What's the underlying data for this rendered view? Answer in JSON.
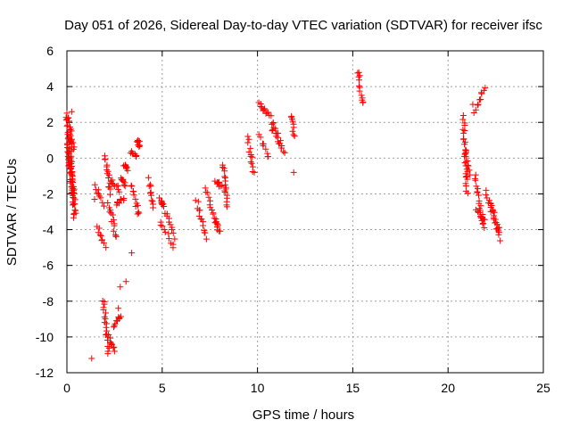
{
  "chart_data": {
    "type": "scatter",
    "title": "Day 051 of 2026, Sidereal Day-to-day VTEC variation (SDTVAR) for receiver ifsc",
    "xlabel": "GPS time / hours",
    "ylabel": "SDTVAR / TECUs",
    "xlim": [
      0,
      25
    ],
    "ylim": [
      -12,
      6
    ],
    "xticks": [
      0,
      5,
      10,
      15,
      20,
      25
    ],
    "yticks": [
      -12,
      -10,
      -8,
      -6,
      -4,
      -2,
      0,
      2,
      4,
      6
    ],
    "xtick_labels": [
      "0",
      "5",
      "10",
      "15",
      "20",
      "25"
    ],
    "ytick_labels": [
      "-12",
      "-10",
      "-8",
      "-6",
      "-4",
      "-2",
      "0",
      "2",
      "4",
      "6"
    ],
    "grid": true,
    "marker": "+",
    "color": "#ff0000",
    "segments": [
      {
        "x0": 0.0,
        "x1": 0.12,
        "y0": 2.5,
        "y1": -0.5
      },
      {
        "x0": 0.1,
        "x1": 0.35,
        "y0": 2.3,
        "y1": 0.5
      },
      {
        "x0": 0.15,
        "x1": 0.4,
        "y0": 1.5,
        "y1": -3.3
      },
      {
        "x0": 0.05,
        "x1": 0.3,
        "y0": 0.8,
        "y1": -2.2
      },
      {
        "x0": 0.2,
        "x1": 0.45,
        "y0": -0.5,
        "y1": -3.0
      },
      {
        "x0": 1.5,
        "x1": 1.9,
        "y0": -1.5,
        "y1": -2.6
      },
      {
        "x0": 1.6,
        "x1": 2.0,
        "y0": -3.8,
        "y1": -4.9
      },
      {
        "x0": 2.0,
        "x1": 2.3,
        "y0": 0.2,
        "y1": -2.0
      },
      {
        "x0": 1.9,
        "x1": 2.2,
        "y0": -7.9,
        "y1": -10.9
      },
      {
        "x0": 2.2,
        "x1": 2.5,
        "y0": -10.0,
        "y1": -10.7
      },
      {
        "x0": 2.2,
        "x1": 2.6,
        "y0": -2.5,
        "y1": -4.5
      },
      {
        "x0": 2.3,
        "x1": 2.8,
        "y0": -1.2,
        "y1": -1.8
      },
      {
        "x0": 2.5,
        "x1": 2.8,
        "y0": -9.4,
        "y1": -8.8
      },
      {
        "x0": 2.6,
        "x1": 3.0,
        "y0": -2.6,
        "y1": -2.2
      },
      {
        "x0": 2.9,
        "x1": 3.0,
        "y0": -1.1,
        "y1": -1.5
      },
      {
        "x0": 3.0,
        "x1": 3.2,
        "y0": -0.4,
        "y1": -0.6
      },
      {
        "x0": 3.4,
        "x1": 3.8,
        "y0": -1.5,
        "y1": -3.2
      },
      {
        "x0": 3.4,
        "x1": 3.6,
        "y0": 0.4,
        "y1": 0.1
      },
      {
        "x0": 3.7,
        "x1": 3.8,
        "y0": 1.0,
        "y1": 0.7
      },
      {
        "x0": 4.3,
        "x1": 4.5,
        "y0": -1.2,
        "y1": -2.8
      },
      {
        "x0": 4.9,
        "x1": 5.1,
        "y0": -2.3,
        "y1": -2.6
      },
      {
        "x0": 4.9,
        "x1": 5.6,
        "y0": -3.5,
        "y1": -5.0
      },
      {
        "x0": 5.2,
        "x1": 5.6,
        "y0": -3.0,
        "y1": -4.4
      },
      {
        "x0": 6.8,
        "x1": 7.3,
        "y0": -2.4,
        "y1": -4.4
      },
      {
        "x0": 7.3,
        "x1": 7.8,
        "y0": -1.7,
        "y1": -3.5
      },
      {
        "x0": 7.8,
        "x1": 8.1,
        "y0": -1.2,
        "y1": -1.6
      },
      {
        "x0": 7.8,
        "x1": 8.0,
        "y0": -3.6,
        "y1": -4.1
      },
      {
        "x0": 8.2,
        "x1": 8.4,
        "y0": -0.3,
        "y1": -2.7
      },
      {
        "x0": 9.5,
        "x1": 9.8,
        "y0": 1.1,
        "y1": -0.8
      },
      {
        "x0": 10.1,
        "x1": 10.5,
        "y0": 3.1,
        "y1": 2.5
      },
      {
        "x0": 10.1,
        "x1": 10.6,
        "y0": 1.2,
        "y1": 0.0
      },
      {
        "x0": 10.6,
        "x1": 11.4,
        "y0": 2.6,
        "y1": 0.3
      },
      {
        "x0": 10.7,
        "x1": 11.3,
        "y0": 1.8,
        "y1": 0.5
      },
      {
        "x0": 11.8,
        "x1": 11.9,
        "y0": 2.4,
        "y1": 1.2
      },
      {
        "x0": 15.3,
        "x1": 15.5,
        "y0": 4.9,
        "y1": 3.0
      },
      {
        "x0": 20.8,
        "x1": 21.0,
        "y0": 2.3,
        "y1": -1.9
      },
      {
        "x0": 20.9,
        "x1": 21.1,
        "y0": 0.5,
        "y1": -1.0
      },
      {
        "x0": 21.4,
        "x1": 21.9,
        "y0": 2.6,
        "y1": 4.0
      },
      {
        "x0": 21.4,
        "x1": 21.9,
        "y0": -1.0,
        "y1": -3.9
      },
      {
        "x0": 21.5,
        "x1": 21.9,
        "y0": -3.0,
        "y1": -3.5
      },
      {
        "x0": 22.0,
        "x1": 22.7,
        "y0": -1.8,
        "y1": -4.5
      },
      {
        "x0": 22.2,
        "x1": 22.7,
        "y0": -2.5,
        "y1": -4.1
      }
    ],
    "points": [
      {
        "x": 1.3,
        "y": -11.2
      },
      {
        "x": 3.4,
        "y": -5.3
      },
      {
        "x": 3.1,
        "y": -6.9
      },
      {
        "x": 2.8,
        "y": -7.2
      },
      {
        "x": 11.9,
        "y": -0.8
      },
      {
        "x": 21.3,
        "y": 3.0
      },
      {
        "x": 0.25,
        "y": 2.6
      },
      {
        "x": 1.45,
        "y": -2.3
      },
      {
        "x": 2.7,
        "y": -8.4
      },
      {
        "x": 8.3,
        "y": -1.9
      }
    ]
  }
}
